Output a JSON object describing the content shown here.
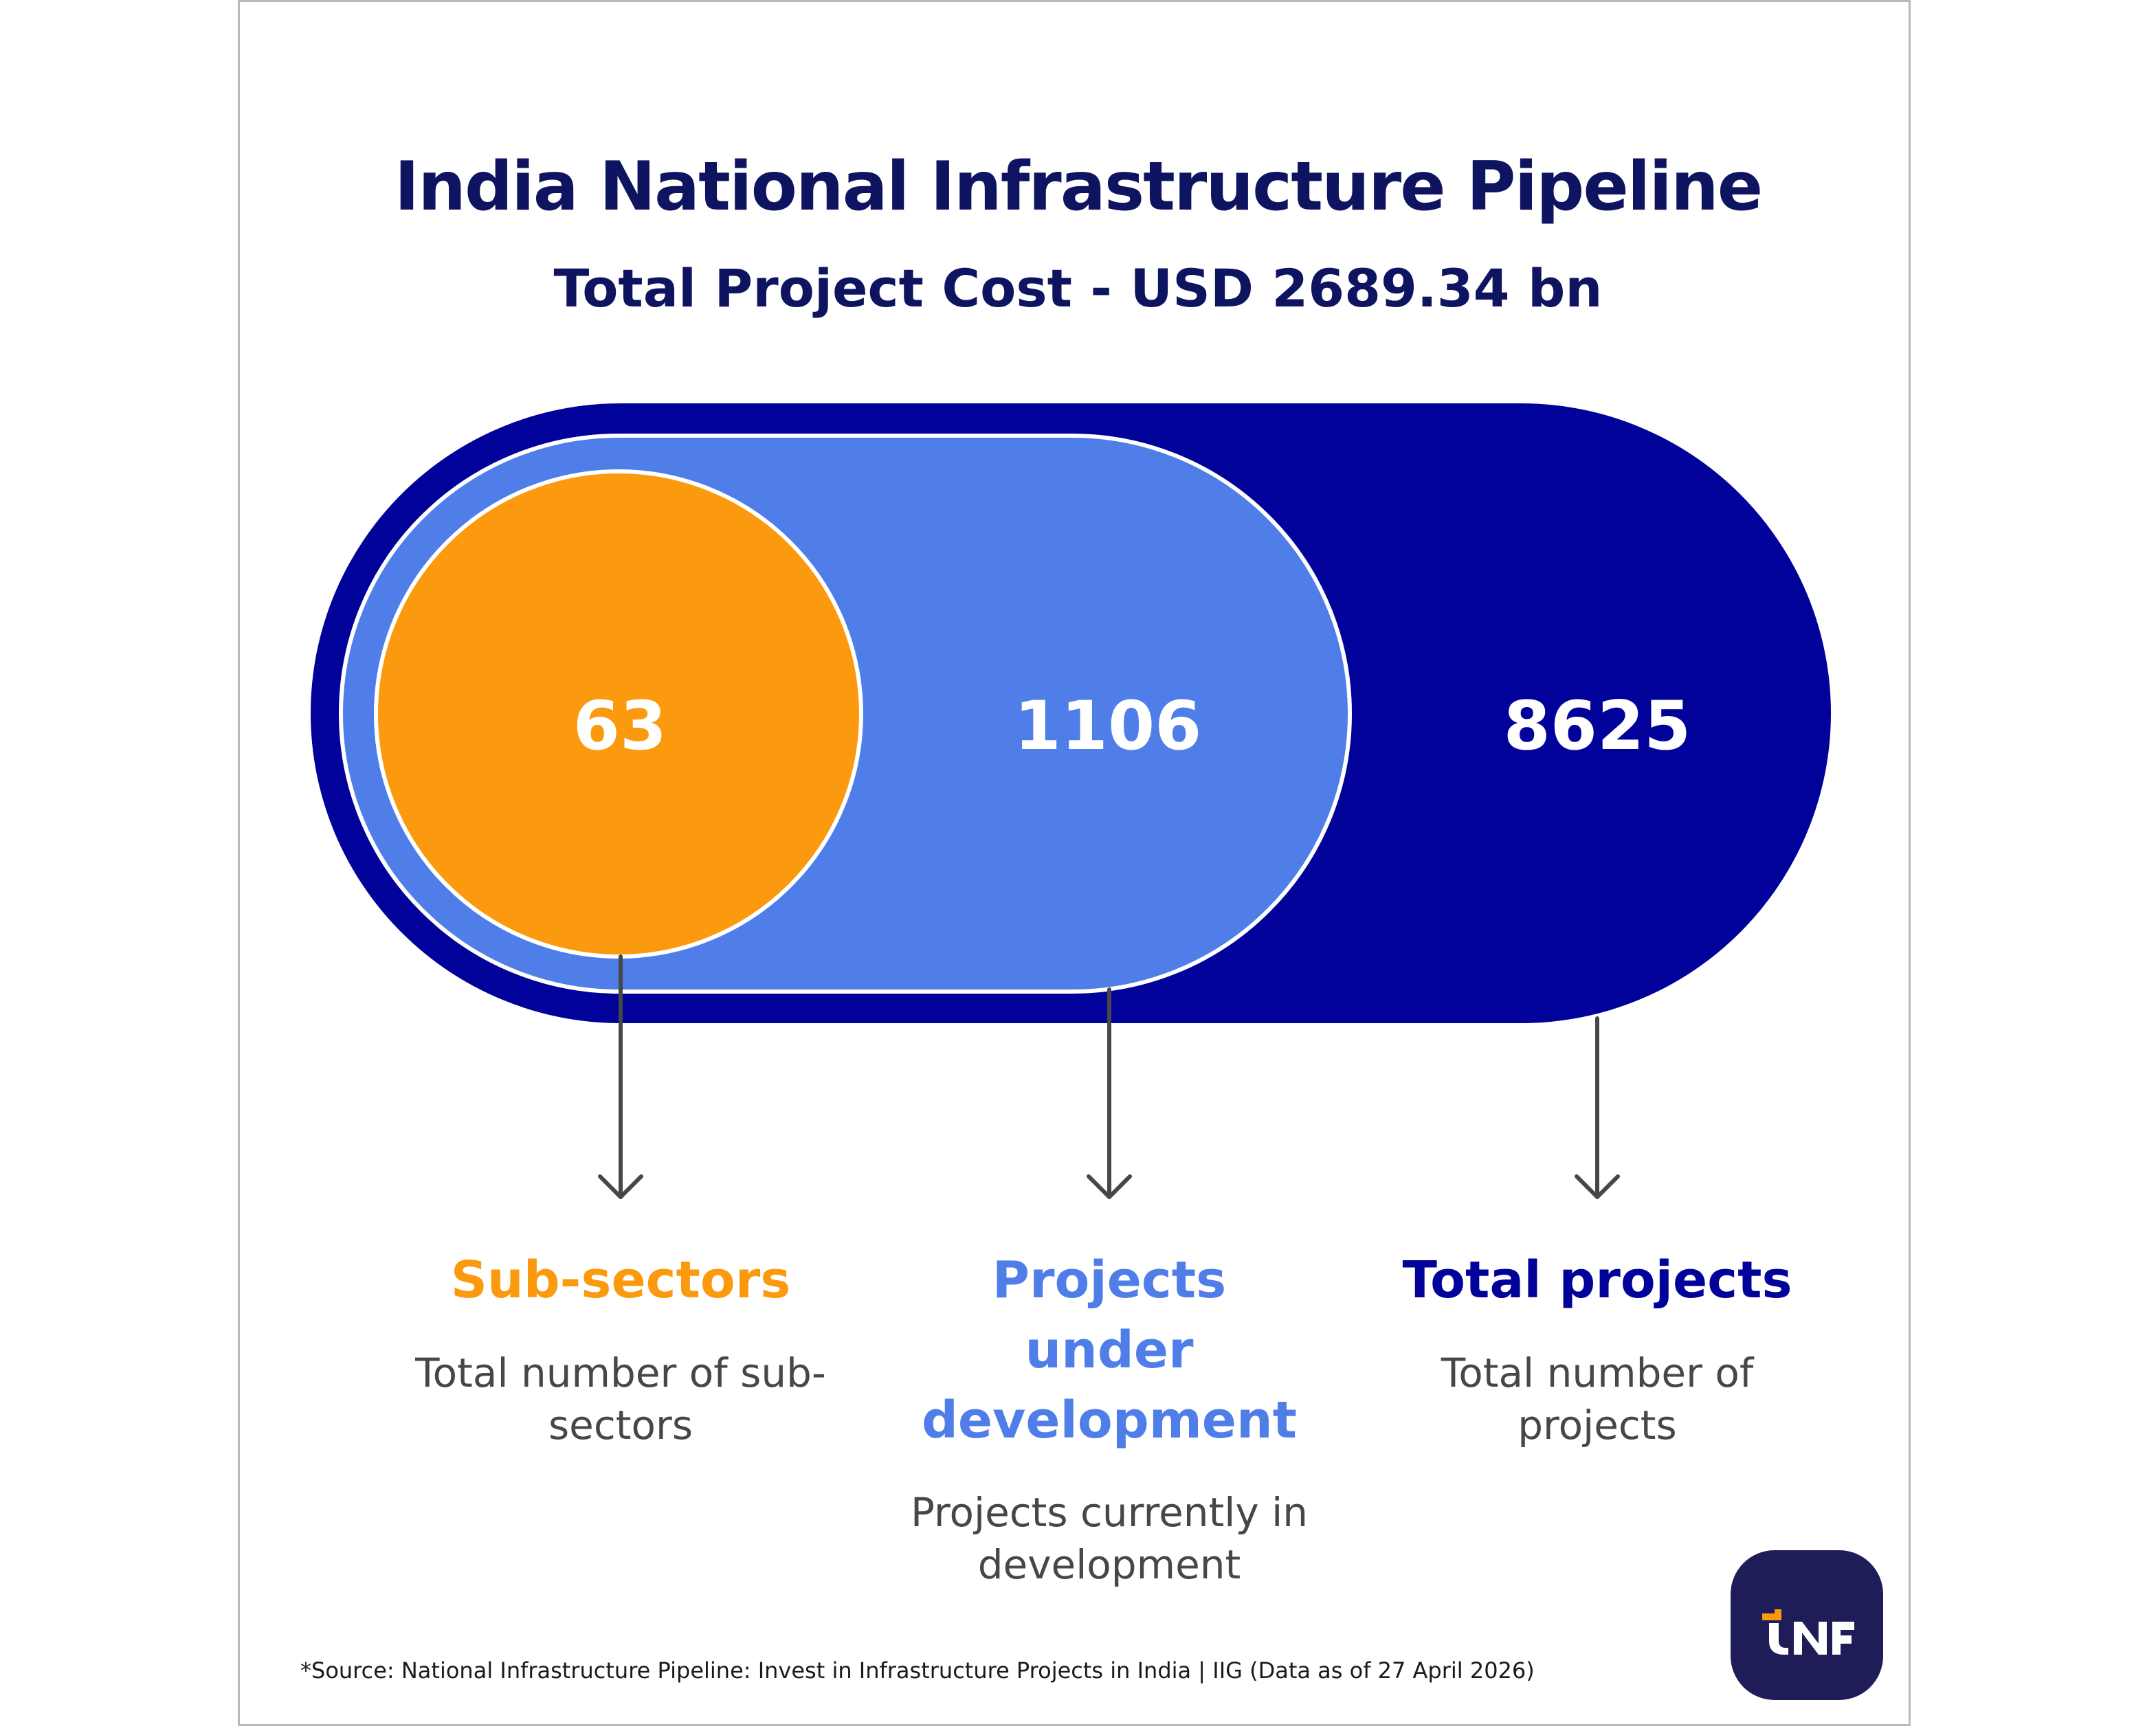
{
  "header": {
    "title": "India National Infrastructure Pipeline",
    "subtitle": "Total Project Cost - USD 2689.34 bn"
  },
  "chart_data": {
    "type": "nested-capsule",
    "items": [
      {
        "value": "63",
        "label": "Sub-sectors",
        "description": "Total number of sub-sectors",
        "color": "#fb9a0e"
      },
      {
        "value": "1106",
        "label": "Projects under development",
        "description": "Projects currently in development",
        "color": "#507ee8"
      },
      {
        "value": "8625",
        "label": "Total projects",
        "description": "Total number of projects",
        "color": "#01029a"
      }
    ]
  },
  "labels": {
    "subsectors": {
      "title": "Sub-sectors",
      "desc_line1": "Total number of sub-",
      "desc_line2": "sectors"
    },
    "development": {
      "title_line1": "Projects",
      "title_line2": "under",
      "title_line3": "development",
      "desc_line1": "Projects currently in",
      "desc_line2": "development"
    },
    "total": {
      "title": "Total projects",
      "desc_line1": "Total number of",
      "desc_line2": "projects"
    }
  },
  "footer": {
    "source": "*Source: National Infrastructure Pipeline: Invest in Infrastructure Projects in India | IIG (Data as of 27 April 2026)"
  },
  "logo": {
    "name": "tnf-logo-icon",
    "background": "#1e1d57",
    "accent": "#fb9a0e"
  },
  "colors": {
    "title": "#0e1460",
    "orange": "#fb9a0e",
    "light_blue": "#507ee8",
    "dark_blue": "#01029a",
    "arrow": "#474747"
  }
}
